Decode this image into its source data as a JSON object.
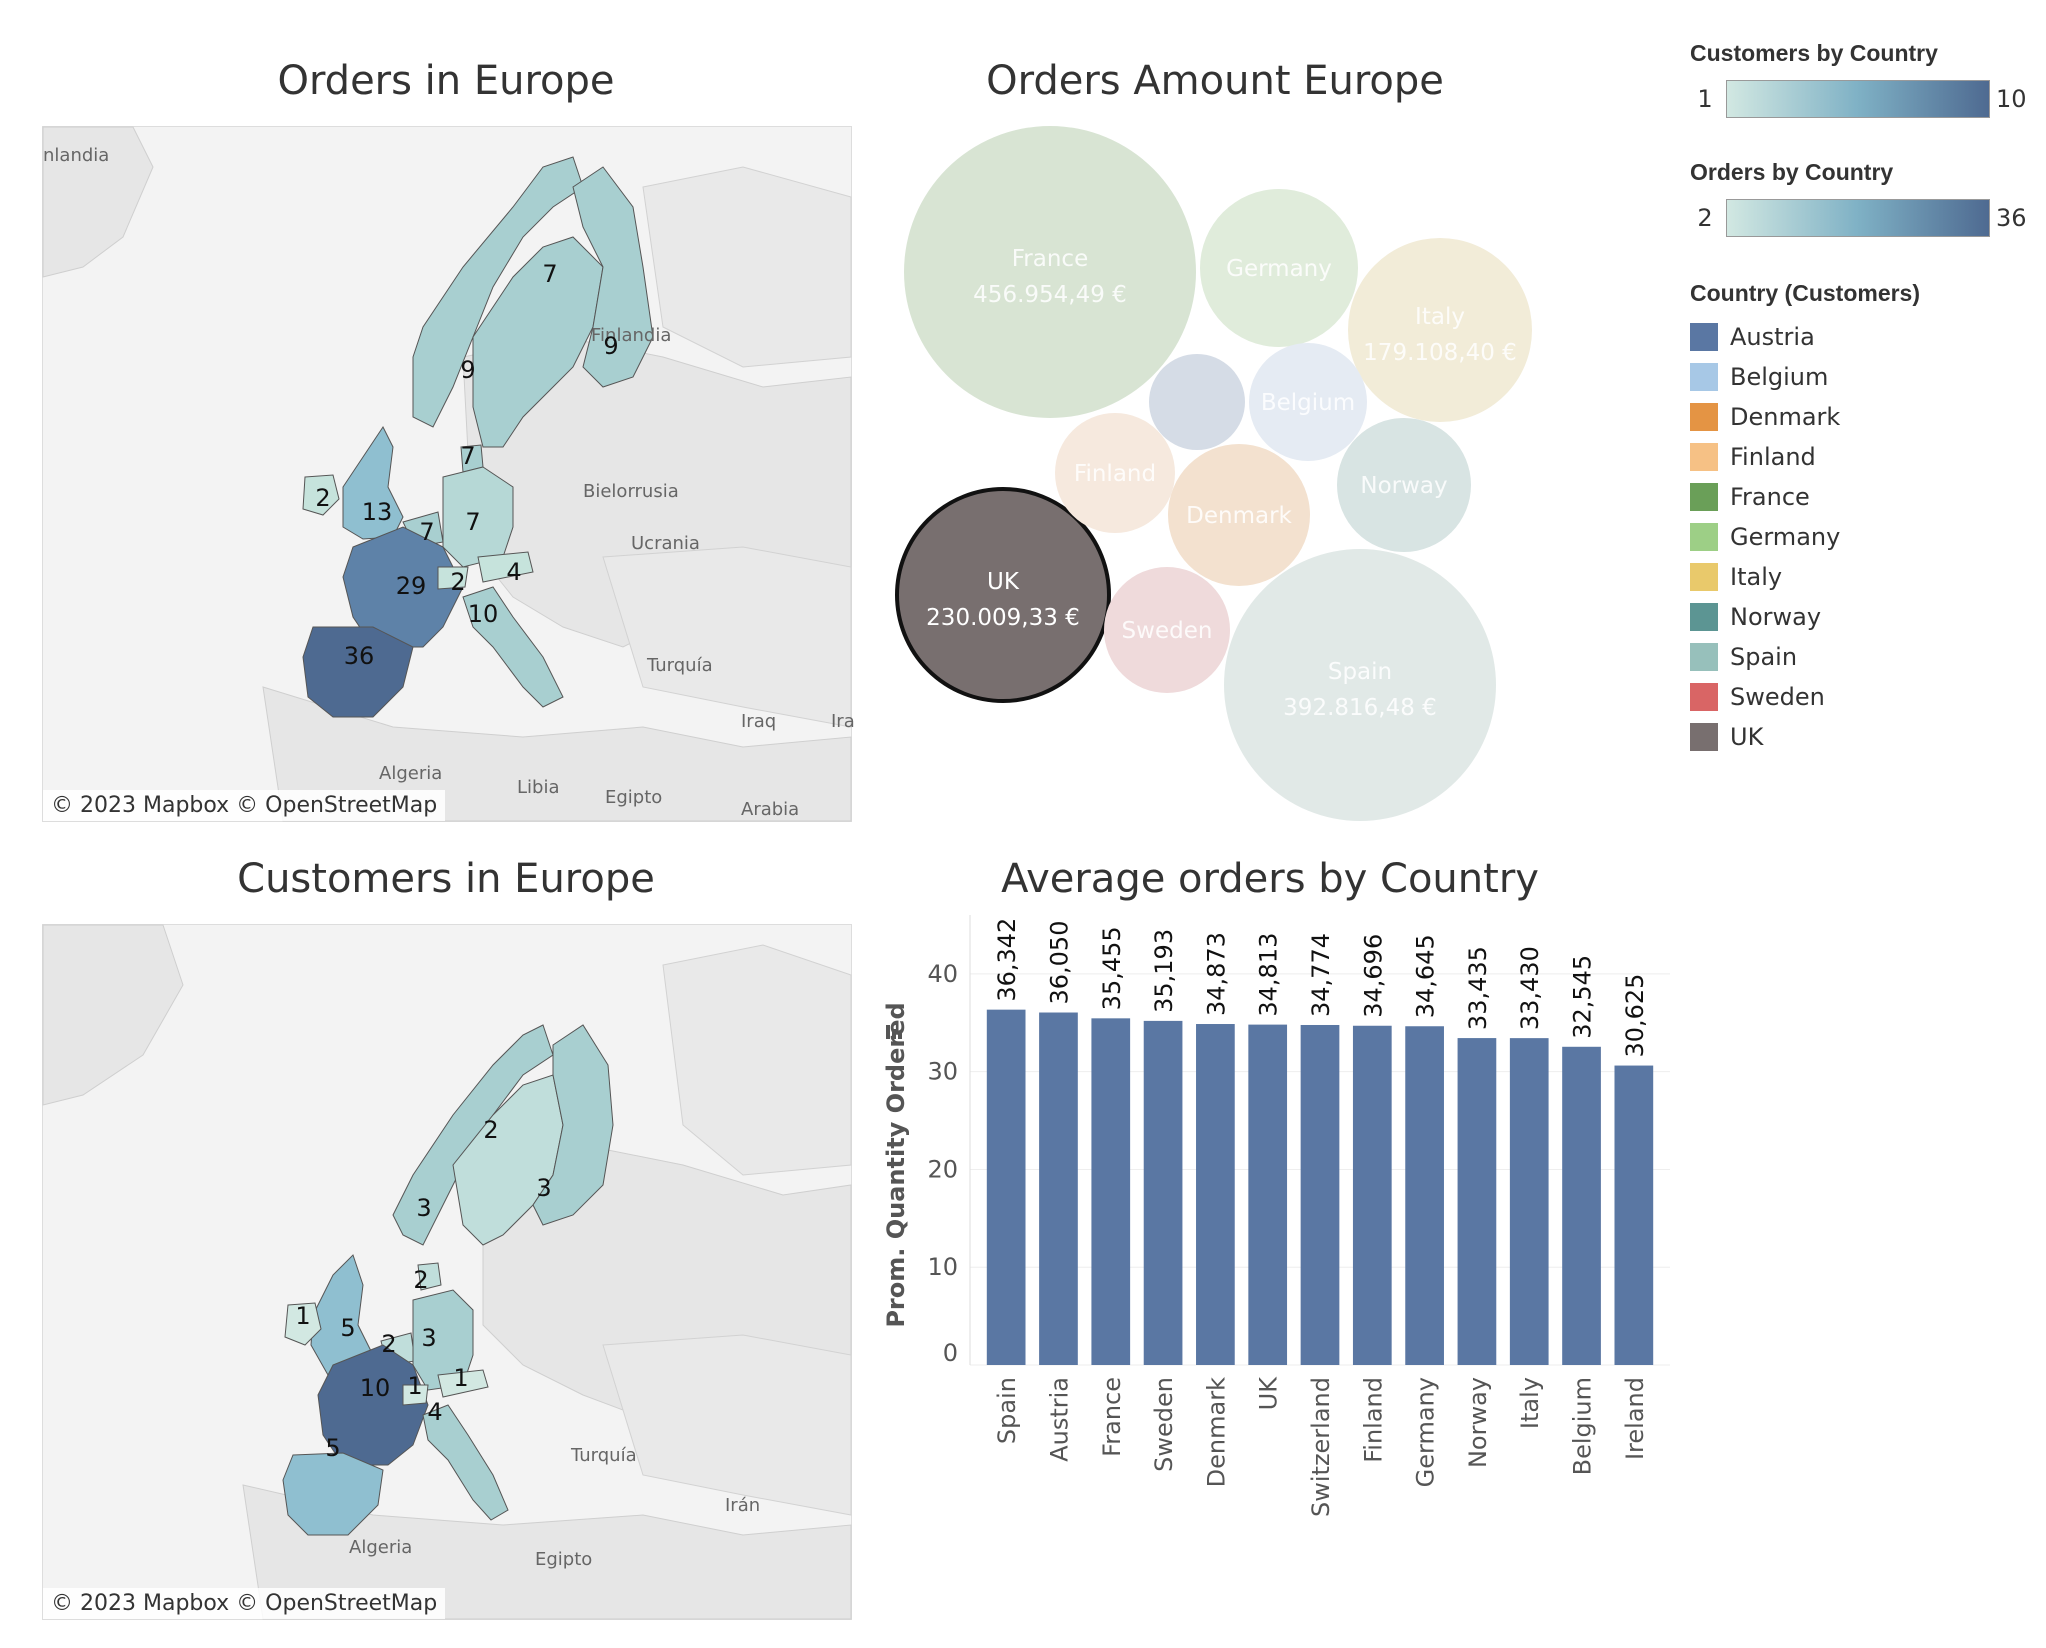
{
  "titles": {
    "orders_map": "Orders in Europe",
    "bubbles": "Orders Amount Europe",
    "customers_map": "Customers in Europe",
    "bar": "Average orders by Country"
  },
  "map_attribution": "© 2023 Mapbox  © OpenStreetMap",
  "orders_map": {
    "places": [
      "nlandia",
      "Finlandia",
      "Bielorrusia",
      "Ucrania",
      "Turquía",
      "Iraq",
      "Ira",
      "Algeria",
      "Libia",
      "Egipto",
      "Arabia"
    ],
    "counts": [
      {
        "country": "Norway",
        "value": 7
      },
      {
        "country": "Finland",
        "value": 9
      },
      {
        "country": "Sweden",
        "value": 9
      },
      {
        "country": "Denmark",
        "value": 7
      },
      {
        "country": "Ireland",
        "value": 2
      },
      {
        "country": "UK",
        "value": 13
      },
      {
        "country": "Belgium",
        "value": 7
      },
      {
        "country": "Germany",
        "value": 7
      },
      {
        "country": "France",
        "value": 29
      },
      {
        "country": "Switzerland",
        "value": 2
      },
      {
        "country": "Austria",
        "value": 4
      },
      {
        "country": "Italy",
        "value": 10
      },
      {
        "country": "Spain",
        "value": 36
      }
    ]
  },
  "customers_map": {
    "places": [
      "Turquía",
      "Irán",
      "Algeria",
      "Egipto"
    ],
    "counts": [
      {
        "country": "Norway",
        "value": 2
      },
      {
        "country": "Finland",
        "value": 3
      },
      {
        "country": "Sweden",
        "value": 3
      },
      {
        "country": "Denmark",
        "value": 2
      },
      {
        "country": "Ireland",
        "value": 1
      },
      {
        "country": "UK",
        "value": 5
      },
      {
        "country": "Belgium",
        "value": 2
      },
      {
        "country": "Germany",
        "value": 3
      },
      {
        "country": "France",
        "value": 10
      },
      {
        "country": "Switzerland",
        "value": 1
      },
      {
        "country": "Austria",
        "value": 1
      },
      {
        "country": "Italy",
        "value": 4
      },
      {
        "country": "Spain",
        "value": 5
      }
    ]
  },
  "legend": {
    "customers_title": "Customers by Country",
    "customers_min": "1",
    "customers_max": "10",
    "orders_title": "Orders by Country",
    "orders_min": "2",
    "orders_max": "36",
    "country_title": "Country (Customers)",
    "countries": [
      {
        "name": "Austria",
        "color": "#5a77a3"
      },
      {
        "name": "Belgium",
        "color": "#a7c8e6"
      },
      {
        "name": "Denmark",
        "color": "#e49444"
      },
      {
        "name": "Finland",
        "color": "#f6c185"
      },
      {
        "name": "France",
        "color": "#6a9f58"
      },
      {
        "name": "Germany",
        "color": "#9dcf86"
      },
      {
        "name": "Italy",
        "color": "#e9c96b"
      },
      {
        "name": "Norway",
        "color": "#5c9593"
      },
      {
        "name": "Spain",
        "color": "#97c0bb"
      },
      {
        "name": "Sweden",
        "color": "#d96565"
      },
      {
        "name": "UK",
        "color": "#786f6f"
      }
    ]
  },
  "chart_data": [
    {
      "type": "bubble",
      "title": "Orders Amount Europe",
      "bubbles": [
        {
          "country": "France",
          "label": "456.954,49 €",
          "value": 456954.49,
          "color": "#d8e4d3"
        },
        {
          "country": "Spain",
          "label": "392.816,48 €",
          "value": 392816.48,
          "color": "#e1e9e7"
        },
        {
          "country": "UK",
          "label": "230.009,33 €",
          "value": 230009.33,
          "color": "#786f6f",
          "highlighted": true
        },
        {
          "country": "Italy",
          "label": "179.108,40 €",
          "value": 179108.4,
          "color": "#f2ecd8"
        },
        {
          "country": "Germany",
          "label": "",
          "color": "#e0ecdb"
        },
        {
          "country": "Denmark",
          "label": "",
          "color": "#f3e1cf"
        },
        {
          "country": "Norway",
          "label": "",
          "color": "#d8e4e3"
        },
        {
          "country": "Belgium",
          "label": "",
          "color": "#e5ebf3"
        },
        {
          "country": "Finland",
          "label": "",
          "color": "#f6e9de"
        },
        {
          "country": "Sweden",
          "label": "",
          "color": "#efdadb"
        },
        {
          "country": "",
          "label": "",
          "color": "#d5dce6"
        }
      ]
    },
    {
      "type": "bar",
      "title": "Average orders by Country",
      "ylabel": "Prom. Quantity Ordered",
      "ylim": [
        0,
        45
      ],
      "yticks": [
        0,
        10,
        20,
        30,
        40
      ],
      "categories": [
        "Spain",
        "Austria",
        "France",
        "Sweden",
        "Denmark",
        "UK",
        "Switzerland",
        "Finland",
        "Germany",
        "Norway",
        "Italy",
        "Belgium",
        "Ireland"
      ],
      "values": [
        36.342,
        36.05,
        35.455,
        35.193,
        34.873,
        34.813,
        34.774,
        34.696,
        34.645,
        33.435,
        33.43,
        32.545,
        30.625
      ],
      "value_labels": [
        "36,342",
        "36,050",
        "35,455",
        "35,193",
        "34,873",
        "34,813",
        "34,774",
        "34,696",
        "34,645",
        "33,435",
        "33,430",
        "32,545",
        "30,625"
      ],
      "bar_color": "#5a77a3"
    }
  ]
}
